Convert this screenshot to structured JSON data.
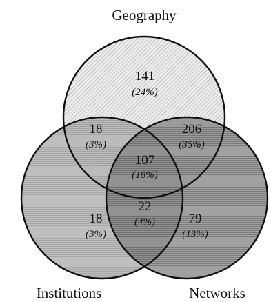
{
  "sets": {
    "geography": "Geography",
    "institutions": "Institutions",
    "networks": "Networks"
  },
  "regions": {
    "geography_only": {
      "count": "141",
      "pct": "(24%)"
    },
    "geography_institutions": {
      "count": "18",
      "pct": "(3%)"
    },
    "geography_networks": {
      "count": "206",
      "pct": "(35%)"
    },
    "all_three": {
      "count": "107",
      "pct": "(18%)"
    },
    "institutions_only": {
      "count": "18",
      "pct": "(3%)"
    },
    "institutions_networks": {
      "count": "22",
      "pct": "(4%)"
    },
    "networks_only": {
      "count": "79",
      "pct": "(13%)"
    }
  },
  "colors": {
    "geography_fill": "#e6e6e6",
    "institutions_fill": "#a9a9a9",
    "networks_fill": "#7f7f7f",
    "outline": "#111111"
  }
}
